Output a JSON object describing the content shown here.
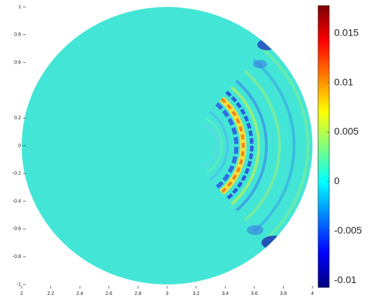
{
  "chart_data": {
    "type": "field",
    "xlim": [
      2,
      4
    ],
    "xticks": [
      2,
      2.2,
      2.4,
      2.6,
      2.8,
      3,
      3.2,
      3.4,
      3.6,
      3.8,
      4
    ],
    "ylim": [
      -1,
      1
    ],
    "yticks": [
      1,
      0.8,
      0.6,
      0.2,
      0,
      -0.2,
      -0.4,
      -0.6,
      -0.8,
      -1
    ],
    "field_color": "#43e6d6",
    "colorbar": {
      "clim": [
        -0.0107,
        0.0178
      ],
      "ticks": [
        0.015,
        0.01,
        0.005,
        0,
        -0.005,
        -0.01
      ],
      "colormap": "jet"
    }
  }
}
